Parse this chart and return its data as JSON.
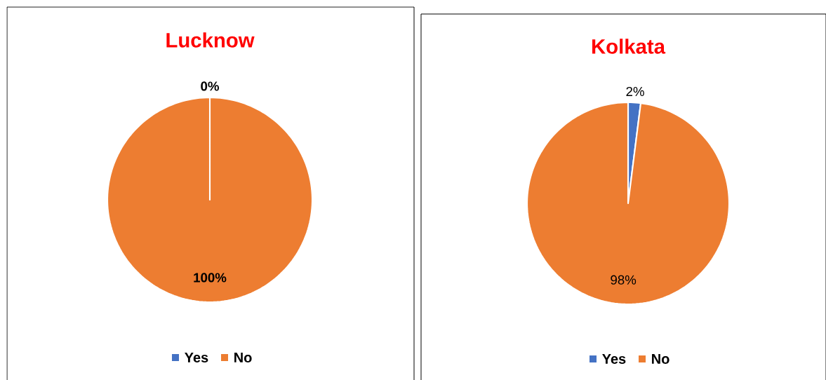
{
  "chart_data": [
    {
      "type": "pie",
      "title": "Lucknow",
      "categories": [
        "Yes",
        "No"
      ],
      "values": [
        0,
        100
      ],
      "colors": [
        "#4472c4",
        "#ed7d31"
      ],
      "value_labels": [
        "0%",
        "100%"
      ],
      "legend": "bottom"
    },
    {
      "type": "pie",
      "title": "Kolkata",
      "categories": [
        "Yes",
        "No"
      ],
      "values": [
        2,
        98
      ],
      "colors": [
        "#4472c4",
        "#ed7d31"
      ],
      "value_labels": [
        "2%",
        "98%"
      ],
      "legend": "bottom"
    }
  ]
}
